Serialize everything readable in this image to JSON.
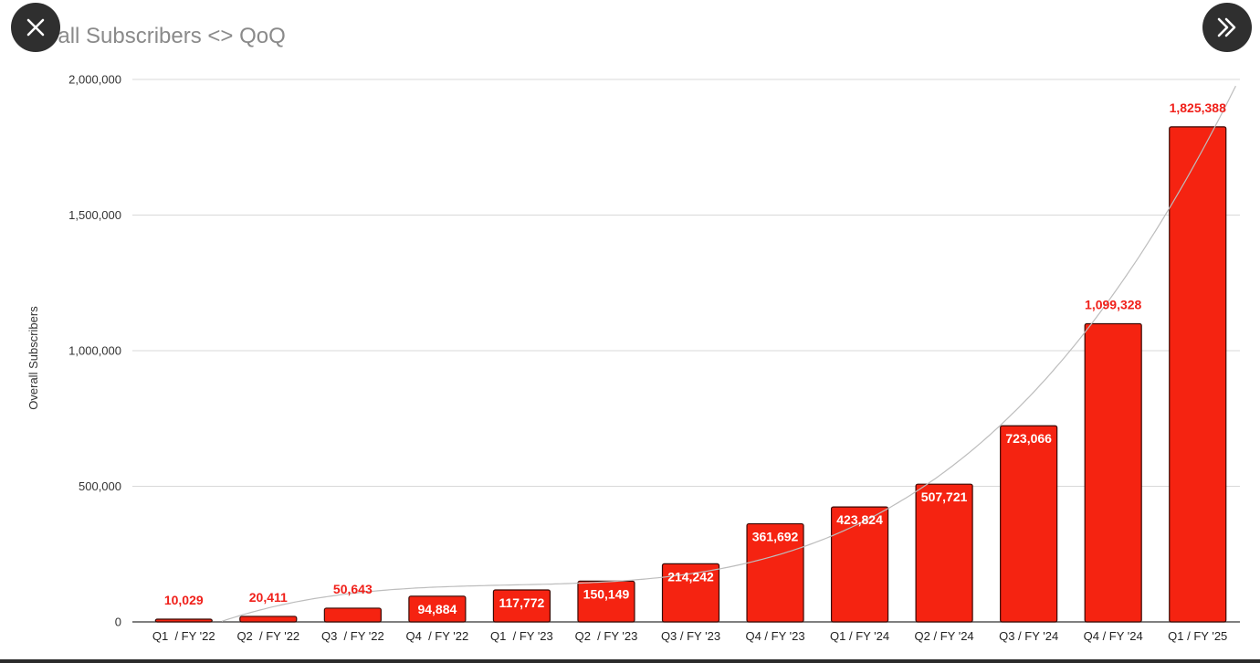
{
  "viewer": {
    "close_icon": "close-icon",
    "next_icon": "double-chevron-right-icon"
  },
  "colors": {
    "bar_fill": "#f52311",
    "bar_stroke": "#3a0a05",
    "outside_label": "#f0201a",
    "inside_label": "#ffffff",
    "gridline": "#d9d9d9",
    "trendline": "#bdbdbd",
    "overlay_button": "#2f2f2f"
  },
  "chart_data": {
    "type": "bar",
    "title": "Overall Subscribers <> QoQ",
    "title_visible": "erall Subscribers <> QoQ",
    "xlabel": "",
    "ylabel": "Overall Subscribers",
    "ylim": [
      0,
      2000000
    ],
    "yticks": [
      0,
      500000,
      1000000,
      1500000,
      2000000
    ],
    "ytick_labels": [
      "0",
      "500,000",
      "1,000,000",
      "1,500,000",
      "2,000,000"
    ],
    "grid": true,
    "trendline": true,
    "categories": [
      "Q1  / FY '22",
      "Q2  / FY '22",
      "Q3  / FY '22",
      "Q4  / FY '22",
      "Q1  / FY '23",
      "Q2  / FY '23",
      "Q3 / FY '23",
      "Q4 / FY '23",
      "Q1 / FY '24",
      "Q2 / FY '24",
      "Q3 / FY '24",
      "Q4 / FY '24",
      "Q1 / FY '25"
    ],
    "values": [
      10029,
      20411,
      50643,
      94884,
      117772,
      150149,
      214242,
      361692,
      423824,
      507721,
      723066,
      1099328,
      1825388
    ],
    "value_labels": [
      "10,029",
      "20,411",
      "50,643",
      "94,884",
      "117,772",
      "150,149",
      "214,242",
      "361,692",
      "423,824",
      "507,721",
      "723,066",
      "1,099,328",
      "1,825,388"
    ],
    "label_positions": [
      "outside",
      "outside",
      "outside",
      "inside",
      "inside",
      "inside",
      "inside",
      "inside",
      "inside",
      "inside",
      "inside",
      "outside",
      "outside"
    ]
  }
}
